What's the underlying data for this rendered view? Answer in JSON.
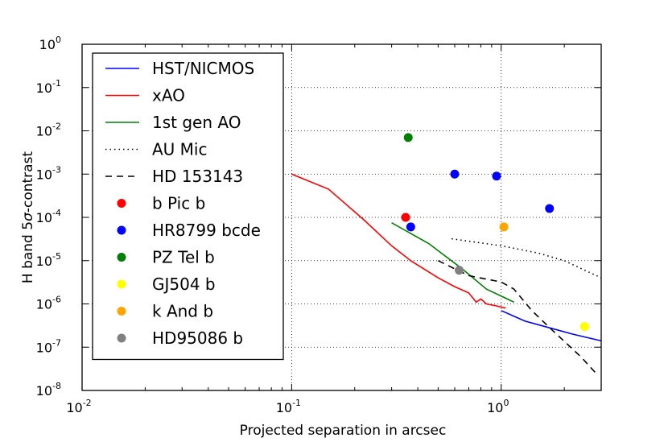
{
  "chart_data": {
    "type": "line",
    "title": "",
    "xlabel": "Projected separation in arcsec",
    "ylabel_prefix": "H band 5",
    "ylabel_symbol": "σ",
    "ylabel_suffix": "-contrast",
    "xscale": "log",
    "yscale": "log",
    "xlim": [
      0.01,
      3.0
    ],
    "ylim": [
      1e-08,
      1
    ],
    "grid": "dotted",
    "x_ticks": [
      {
        "value": 0.01,
        "base": "10",
        "exp": "-2"
      },
      {
        "value": 0.1,
        "base": "10",
        "exp": "-1"
      },
      {
        "value": 1,
        "base": "10",
        "exp": "0"
      }
    ],
    "y_ticks": [
      {
        "value": 1e-08,
        "base": "10",
        "exp": "-8"
      },
      {
        "value": 1e-07,
        "base": "10",
        "exp": "-7"
      },
      {
        "value": 1e-06,
        "base": "10",
        "exp": "-6"
      },
      {
        "value": 1e-05,
        "base": "10",
        "exp": "-5"
      },
      {
        "value": 0.0001,
        "base": "10",
        "exp": "-4"
      },
      {
        "value": 0.001,
        "base": "10",
        "exp": "-3"
      },
      {
        "value": 0.01,
        "base": "10",
        "exp": "-2"
      },
      {
        "value": 0.1,
        "base": "10",
        "exp": "-1"
      },
      {
        "value": 1,
        "base": "10",
        "exp": "0"
      }
    ],
    "legend_location": "upper-left",
    "lines": [
      {
        "name": "HST/NICMOS",
        "color": "#0000ff",
        "style": "solid",
        "x": [
          1.0,
          1.3,
          1.7,
          2.2,
          3.0
        ],
        "y": [
          7e-07,
          4e-07,
          2.8e-07,
          2e-07,
          1.4e-07
        ]
      },
      {
        "name": "xAO",
        "color": "#ff0000",
        "style": "solid",
        "x": [
          0.1,
          0.15,
          0.22,
          0.3,
          0.37,
          0.5,
          0.6,
          0.7,
          0.76,
          0.8,
          0.85,
          0.95,
          1.05
        ],
        "y": [
          0.001,
          0.00045,
          9e-05,
          2.2e-05,
          1e-05,
          4e-06,
          2.5e-06,
          1.8e-06,
          1.1e-06,
          1.3e-06,
          1e-06,
          9e-07,
          8e-07
        ]
      },
      {
        "name": "1st gen AO",
        "color": "#008000",
        "style": "solid",
        "x": [
          0.3,
          0.45,
          0.65,
          0.85,
          1.15
        ],
        "y": [
          7.5e-05,
          2.5e-05,
          6.5e-06,
          2.2e-06,
          1.1e-06
        ]
      },
      {
        "name": "AU Mic",
        "color": "#000000",
        "style": "dotted",
        "x": [
          0.58,
          1.0,
          1.5,
          2.0,
          3.0
        ],
        "y": [
          3.2e-05,
          2.2e-05,
          1.5e-05,
          1e-05,
          4e-06
        ]
      },
      {
        "name": "HD 153143",
        "color": "#000000",
        "style": "dashed",
        "x": [
          0.5,
          0.7,
          1.0,
          1.15,
          1.4,
          1.75,
          2.4,
          2.9
        ],
        "y": [
          1e-05,
          4.5e-06,
          3.2e-06,
          2.2e-06,
          7e-07,
          2.5e-07,
          6e-08,
          2.2e-08
        ]
      }
    ],
    "points": [
      {
        "name": "b Pic b",
        "color": "#ff0000",
        "x": [
          0.35
        ],
        "y": [
          0.0001
        ]
      },
      {
        "name": "HR8799 bcde",
        "color": "#0000ff",
        "x": [
          0.37,
          0.6,
          0.95,
          1.7
        ],
        "y": [
          6e-05,
          0.001,
          0.0009,
          0.00016
        ]
      },
      {
        "name": "PZ Tel b",
        "color": "#008000",
        "x": [
          0.36
        ],
        "y": [
          0.007
        ]
      },
      {
        "name": "GJ504 b",
        "color": "#ffff00",
        "x": [
          2.5
        ],
        "y": [
          3e-07
        ]
      },
      {
        "name": "k And b",
        "color": "#ffa500",
        "x": [
          1.03
        ],
        "y": [
          6e-05
        ]
      },
      {
        "name": "HD95086 b",
        "color": "#808080",
        "x": [
          0.63
        ],
        "y": [
          6e-06
        ]
      }
    ],
    "legend": [
      {
        "label": "HST/NICMOS",
        "kind": "line",
        "color": "#0000ff",
        "style": "solid"
      },
      {
        "label": "xAO",
        "kind": "line",
        "color": "#ff0000",
        "style": "solid"
      },
      {
        "label": "1st gen AO",
        "kind": "line",
        "color": "#008000",
        "style": "solid"
      },
      {
        "label": "AU Mic",
        "kind": "line",
        "color": "#000000",
        "style": "dotted"
      },
      {
        "label": "HD 153143",
        "kind": "line",
        "color": "#000000",
        "style": "dashed"
      },
      {
        "label": "b Pic b",
        "kind": "point",
        "color": "#ff0000"
      },
      {
        "label": "HR8799 bcde",
        "kind": "point",
        "color": "#0000ff"
      },
      {
        "label": "PZ Tel b",
        "kind": "point",
        "color": "#008000"
      },
      {
        "label": "GJ504 b",
        "kind": "point",
        "color": "#ffff00"
      },
      {
        "label": "k And b",
        "kind": "point",
        "color": "#ffa500"
      },
      {
        "label": "HD95086 b",
        "kind": "point",
        "color": "#808080"
      }
    ]
  }
}
